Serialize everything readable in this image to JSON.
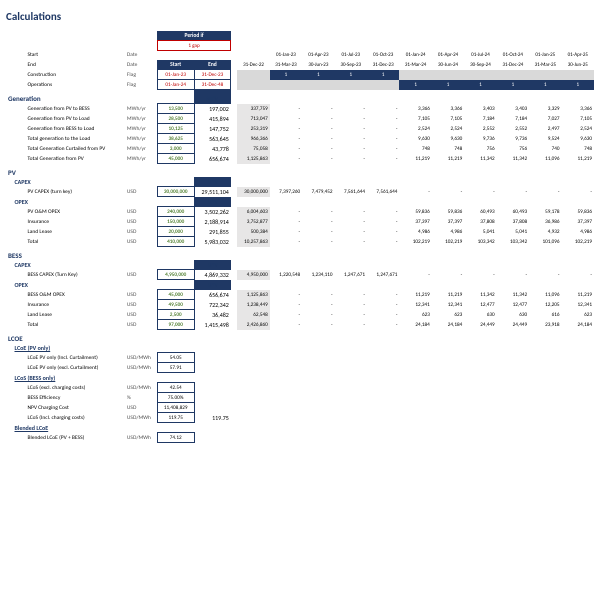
{
  "title": "Calculations",
  "period": {
    "header": "Period if",
    "value": "1 gap"
  },
  "head": {
    "start": {
      "label": "Start",
      "unit": "Date",
      "in": "",
      "dates": [
        "",
        "01-Jan-23",
        "01-Apr-23",
        "01-Jul-23",
        "01-Oct-23",
        "01-Jan-24",
        "01-Apr-24",
        "01-Jul-24",
        "01-Oct-24",
        "01-Jan-25",
        "01-Apr-25"
      ]
    },
    "end": {
      "label": "End",
      "unit": "Date",
      "in": "",
      "d0": "31-Dec-22",
      "dates": [
        "",
        "31-Mar-23",
        "30-Jun-23",
        "30-Sep-23",
        "31-Dec-23",
        "31-Mar-24",
        "30-Jun-24",
        "30-Sep-24",
        "31-Dec-24",
        "31-Mar-25",
        "30-Jun-25"
      ]
    },
    "construction": {
      "label": "Construction",
      "unit": "Flag",
      "start": "01-Jan-23",
      "end": "31-Dec-23",
      "flags": [
        "",
        "1",
        "1",
        "1",
        "1",
        "",
        "",
        "",
        "",
        "",
        ""
      ]
    },
    "ops": {
      "label": "Operations",
      "unit": "Flag",
      "start": "01-Jan-24",
      "end": "31-Dec-48",
      "flags": [
        "",
        "",
        "",
        "",
        "",
        "1",
        "1",
        "1",
        "1",
        "1",
        "1"
      ]
    },
    "startLbl": "Start",
    "endLbl": "End"
  },
  "generation": {
    "title": "Generation",
    "rows": [
      {
        "label": "Generation from PV to BESS",
        "unit": "MWh/yr",
        "in": "13,500",
        "npv": "197,002",
        "v": [
          "337,759",
          "-",
          "-",
          "-",
          "-",
          "3,366",
          "3,366",
          "3,403",
          "3,403",
          "3,329",
          "3,366"
        ]
      },
      {
        "label": "Generation from PV to Load",
        "unit": "MWh/yr",
        "in": "28,500",
        "npv": "415,894",
        "v": [
          "713,047",
          "-",
          "-",
          "-",
          "-",
          "7,105",
          "7,105",
          "7,184",
          "7,184",
          "7,027",
          "7,105"
        ]
      },
      {
        "label": "Generation from BESS to Load",
        "unit": "MWh/yr",
        "in": "10,125",
        "npv": "147,752",
        "v": [
          "253,319",
          "-",
          "-",
          "-",
          "-",
          "2,524",
          "2,524",
          "2,552",
          "2,552",
          "2,497",
          "2,524"
        ]
      },
      {
        "label": "Total generation to the Load",
        "unit": "MWh/yr",
        "in": "38,625",
        "npv": "563,645",
        "v": [
          "966,366",
          "-",
          "-",
          "-",
          "-",
          "9,630",
          "9,630",
          "9,736",
          "9,736",
          "9,524",
          "9,630"
        ]
      },
      {
        "label": "Total Generation Curtailed from PV",
        "unit": "MWh/yr",
        "in": "3,000",
        "npv": "43,778",
        "v": [
          "75,058",
          "-",
          "-",
          "-",
          "-",
          "748",
          "748",
          "756",
          "756",
          "740",
          "748"
        ]
      },
      {
        "label": "Total Generation from PV",
        "unit": "MWh/yr",
        "in": "45,000",
        "npv": "656,674",
        "v": [
          "1,125,863",
          "-",
          "-",
          "-",
          "-",
          "11,219",
          "11,219",
          "11,342",
          "11,342",
          "11,096",
          "11,219"
        ]
      }
    ]
  },
  "pv": {
    "title": "PV",
    "capex": {
      "title": "CAPEX",
      "label": "PV CAPEX (turn key)",
      "unit": "USD",
      "in": "30,000,000",
      "npv": "29,511,104",
      "v": [
        "30,000,000",
        "7,397,260",
        "7,479,452",
        "7,561,644",
        "7,561,644",
        "-",
        "-",
        "-",
        "-",
        "-",
        "-"
      ]
    },
    "opex": {
      "title": "OPEX",
      "rows": [
        {
          "label": "PV O&M OPEX",
          "unit": "USD",
          "in": "240,000",
          "npv": "3,502,262",
          "v": [
            "6,004,603",
            "-",
            "-",
            "-",
            "-",
            "59,836",
            "59,836",
            "60,493",
            "60,493",
            "59,178",
            "59,836"
          ]
        },
        {
          "label": "Insurance",
          "unit": "USD",
          "in": "150,000",
          "npv": "2,188,914",
          "v": [
            "3,752,877",
            "-",
            "-",
            "-",
            "-",
            "37,397",
            "37,397",
            "37,808",
            "37,808",
            "36,986",
            "37,397"
          ]
        },
        {
          "label": "Land Lease",
          "unit": "USD",
          "in": "20,000",
          "npv": "291,855",
          "v": [
            "500,384",
            "-",
            "-",
            "-",
            "-",
            "4,986",
            "4,986",
            "5,041",
            "5,041",
            "4,932",
            "4,986"
          ]
        },
        {
          "label": "Total",
          "unit": "USD",
          "in": "410,000",
          "npv": "5,983,032",
          "v": [
            "10,257,863",
            "-",
            "-",
            "-",
            "-",
            "102,219",
            "102,219",
            "103,342",
            "103,342",
            "101,096",
            "102,219"
          ]
        }
      ]
    }
  },
  "bess": {
    "title": "BESS",
    "capex": {
      "title": "CAPEX",
      "label": "BESS CAPEX (Turn Key)",
      "unit": "USD",
      "in": "4,950,000",
      "npv": "4,869,332",
      "v": [
        "4,950,000",
        "1,220,548",
        "1,234,110",
        "1,247,671",
        "1,247,671",
        "-",
        "-",
        "-",
        "-",
        "-",
        "-"
      ]
    },
    "opex": {
      "title": "OPEX",
      "rows": [
        {
          "label": "BESS O&M OPEX",
          "unit": "USD",
          "in": "45,000",
          "npv": "656,674",
          "v": [
            "1,125,863",
            "-",
            "-",
            "-",
            "-",
            "11,219",
            "11,219",
            "11,342",
            "11,342",
            "11,096",
            "11,219"
          ]
        },
        {
          "label": "Insurance",
          "unit": "USD",
          "in": "49,500",
          "npv": "722,342",
          "v": [
            "1,238,449",
            "-",
            "-",
            "-",
            "-",
            "12,341",
            "12,341",
            "12,477",
            "12,477",
            "12,205",
            "12,341"
          ]
        },
        {
          "label": "Land Lease",
          "unit": "USD",
          "in": "2,500",
          "npv": "36,482",
          "v": [
            "62,548",
            "-",
            "-",
            "-",
            "-",
            "623",
            "623",
            "630",
            "630",
            "616",
            "623"
          ]
        },
        {
          "label": "Total",
          "unit": "USD",
          "in": "97,000",
          "npv": "1,415,498",
          "v": [
            "2,426,860",
            "-",
            "-",
            "-",
            "-",
            "24,184",
            "24,184",
            "24,449",
            "24,449",
            "23,918",
            "24,184"
          ]
        }
      ]
    }
  },
  "lcoe": {
    "title": "LCOE",
    "sec1": {
      "title": "LCoE (PV only)",
      "rows": [
        {
          "label": "LCoE PV only (Incl. Curtailment)",
          "unit": "USD/MWh",
          "in": "54.05",
          "npv": ""
        },
        {
          "label": "LCoE PV only (excl. Curtailment)",
          "unit": "USD/MWh",
          "in": "57.91",
          "npv": ""
        }
      ]
    },
    "sec2": {
      "title": "LCoS (BESS only)",
      "rows": [
        {
          "label": "LCoS (excl. charging costs)",
          "unit": "USD/MWh",
          "in": "42.54",
          "npv": ""
        },
        {
          "label": "BESS Efficiency",
          "unit": "%",
          "in": "75.00%",
          "npv": ""
        },
        {
          "label": "NPV Charging Cost",
          "unit": "USD",
          "in": "11,408,829",
          "npv": ""
        },
        {
          "label": "LCoS (Incl. charging costs)",
          "unit": "USD/MWh",
          "in": "119.75",
          "npv": "119.75"
        }
      ]
    },
    "sec3": {
      "title": "Blended LCoE",
      "rows": [
        {
          "label": "Blended LCoE (PV + BESS)",
          "unit": "USD/MWh",
          "in": "74.12",
          "npv": ""
        }
      ]
    }
  }
}
